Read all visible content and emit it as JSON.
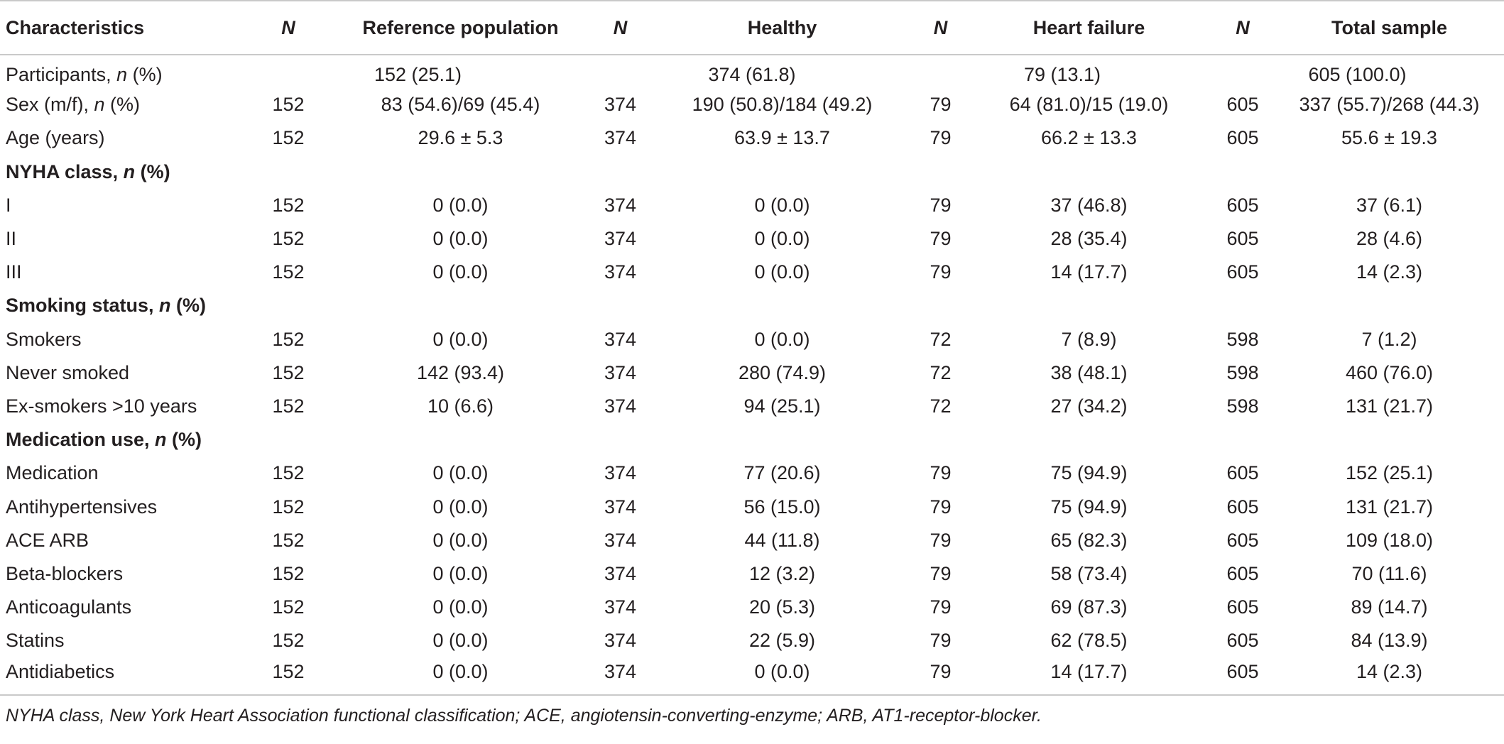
{
  "table": {
    "headers": [
      "Characteristics",
      "N",
      "Reference population",
      "N",
      "Healthy",
      "N",
      "Heart failure",
      "N",
      "Total sample"
    ],
    "rows": [
      {
        "type": "span",
        "label": "Participants, ",
        "label_italic": "n",
        "label_suffix": " (%)",
        "ref": "152 (25.1)",
        "healthy": "374 (61.8)",
        "hf": "79 (13.1)",
        "total": "605 (100.0)"
      },
      {
        "type": "data",
        "label": "Sex (m/f), ",
        "label_italic": "n",
        "label_suffix": " (%)",
        "cells": [
          "152",
          "83 (54.6)/69 (45.4)",
          "374",
          "190 (50.8)/184 (49.2)",
          "79",
          "64 (81.0)/15 (19.0)",
          "605",
          "337 (55.7)/268 (44.3)"
        ]
      },
      {
        "type": "data",
        "label": "Age (years)",
        "label_italic": "",
        "label_suffix": "",
        "cells": [
          "152",
          "29.6 ± 5.3",
          "374",
          "63.9 ± 13.7",
          "79",
          "66.2 ± 13.3",
          "605",
          "55.6 ± 19.3"
        ]
      },
      {
        "type": "section",
        "label": "NYHA class, ",
        "label_italic": "n",
        "label_suffix": " (%)"
      },
      {
        "type": "data",
        "label": "I",
        "label_italic": "",
        "label_suffix": "",
        "cells": [
          "152",
          "0 (0.0)",
          "374",
          "0 (0.0)",
          "79",
          "37 (46.8)",
          "605",
          "37 (6.1)"
        ]
      },
      {
        "type": "data",
        "label": "II",
        "label_italic": "",
        "label_suffix": "",
        "cells": [
          "152",
          "0 (0.0)",
          "374",
          "0 (0.0)",
          "79",
          "28 (35.4)",
          "605",
          "28 (4.6)"
        ]
      },
      {
        "type": "data",
        "label": "III",
        "label_italic": "",
        "label_suffix": "",
        "cells": [
          "152",
          "0 (0.0)",
          "374",
          "0 (0.0)",
          "79",
          "14 (17.7)",
          "605",
          "14 (2.3)"
        ]
      },
      {
        "type": "section",
        "label": "Smoking status, ",
        "label_italic": "n",
        "label_suffix": " (%)"
      },
      {
        "type": "data",
        "label": "Smokers",
        "label_italic": "",
        "label_suffix": "",
        "cells": [
          "152",
          "0 (0.0)",
          "374",
          "0 (0.0)",
          "72",
          "7 (8.9)",
          "598",
          "7 (1.2)"
        ]
      },
      {
        "type": "data",
        "label": "Never smoked",
        "label_italic": "",
        "label_suffix": "",
        "cells": [
          "152",
          "142 (93.4)",
          "374",
          "280 (74.9)",
          "72",
          "38 (48.1)",
          "598",
          "460 (76.0)"
        ]
      },
      {
        "type": "data",
        "label": "Ex-smokers >10 years",
        "label_italic": "",
        "label_suffix": "",
        "cells": [
          "152",
          "10 (6.6)",
          "374",
          "94 (25.1)",
          "72",
          "27 (34.2)",
          "598",
          "131 (21.7)"
        ]
      },
      {
        "type": "section",
        "label": "Medication use, ",
        "label_italic": "n",
        "label_suffix": " (%)"
      },
      {
        "type": "data",
        "label": "Medication",
        "label_italic": "",
        "label_suffix": "",
        "cells": [
          "152",
          "0 (0.0)",
          "374",
          "77 (20.6)",
          "79",
          "75 (94.9)",
          "605",
          "152 (25.1)"
        ]
      },
      {
        "type": "data",
        "label": "Antihypertensives",
        "label_italic": "",
        "label_suffix": "",
        "cells": [
          "152",
          "0 (0.0)",
          "374",
          "56 (15.0)",
          "79",
          "75 (94.9)",
          "605",
          "131 (21.7)"
        ]
      },
      {
        "type": "data",
        "label": "ACE ARB",
        "label_italic": "",
        "label_suffix": "",
        "cells": [
          "152",
          "0 (0.0)",
          "374",
          "44 (11.8)",
          "79",
          "65 (82.3)",
          "605",
          "109 (18.0)"
        ]
      },
      {
        "type": "data",
        "label": "Beta-blockers",
        "label_italic": "",
        "label_suffix": "",
        "cells": [
          "152",
          "0 (0.0)",
          "374",
          "12 (3.2)",
          "79",
          "58 (73.4)",
          "605",
          "70 (11.6)"
        ]
      },
      {
        "type": "data",
        "label": "Anticoagulants",
        "label_italic": "",
        "label_suffix": "",
        "cells": [
          "152",
          "0 (0.0)",
          "374",
          "20 (5.3)",
          "79",
          "69 (87.3)",
          "605",
          "89 (14.7)"
        ]
      },
      {
        "type": "data",
        "label": "Statins",
        "label_italic": "",
        "label_suffix": "",
        "cells": [
          "152",
          "0 (0.0)",
          "374",
          "22 (5.9)",
          "79",
          "62 (78.5)",
          "605",
          "84 (13.9)"
        ]
      },
      {
        "type": "data",
        "label": "Antidiabetics",
        "label_italic": "",
        "label_suffix": "",
        "cells": [
          "152",
          "0 (0.0)",
          "374",
          "0 (0.0)",
          "79",
          "14 (17.7)",
          "605",
          "14 (2.3)"
        ]
      }
    ]
  },
  "footnote": "NYHA class, New York Heart Association functional classification; ACE, angiotensin-converting-enzyme; ARB, AT1-receptor-blocker.",
  "colors": {
    "text": "#231f20",
    "rule": "#c9c9c9"
  }
}
